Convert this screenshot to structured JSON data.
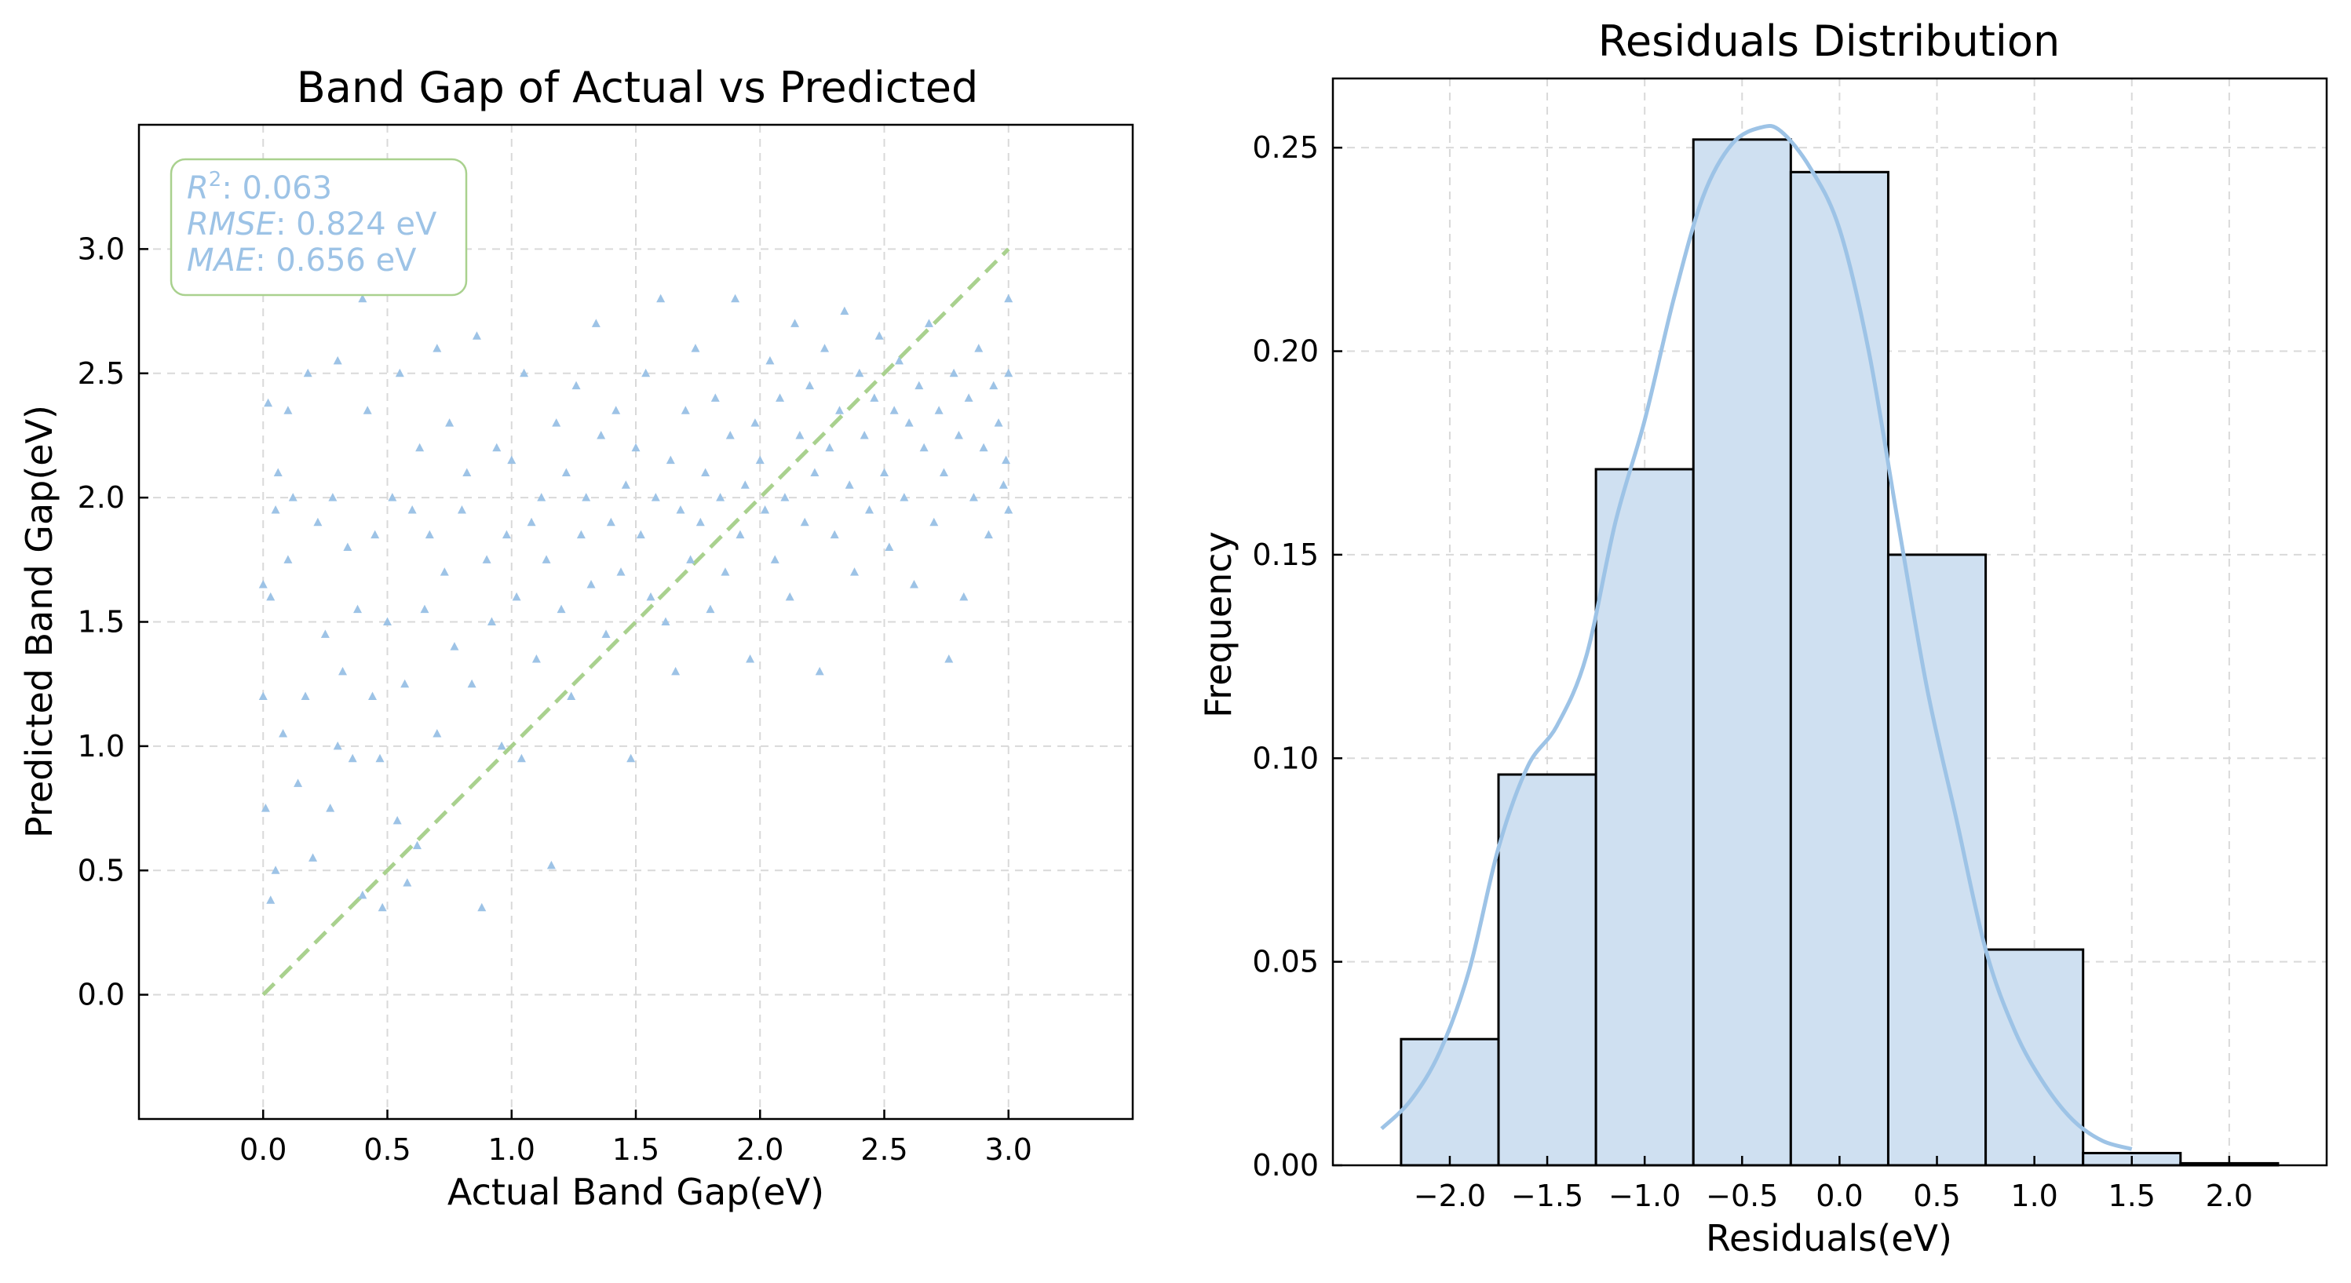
{
  "colors": {
    "scatter": "#9dc3e6",
    "ideal_line": "#a9d18e",
    "bar_fill": "#cfe0f1",
    "bar_edge": "#000000",
    "kde": "#9dc3e6",
    "grid": "#d9d9d9",
    "annotation_text": "#9dc3e6",
    "annotation_border": "#a9d18e"
  },
  "chart_data": [
    {
      "type": "scatter",
      "title": "Band Gap of Actual vs Predicted",
      "xlabel": "Actual Band Gap(eV)",
      "ylabel": "Predicted Band Gap(eV)",
      "xlim": [
        -0.5,
        3.5
      ],
      "ylim": [
        -0.5,
        3.5
      ],
      "xticks": [
        0.0,
        0.5,
        1.0,
        1.5,
        2.0,
        2.5,
        3.0
      ],
      "yticks": [
        0.0,
        0.5,
        1.0,
        1.5,
        2.0,
        2.5,
        3.0
      ],
      "xtick_labels": [
        "0.0",
        "0.5",
        "1.0",
        "1.5",
        "2.0",
        "2.5",
        "3.0"
      ],
      "ytick_labels": [
        "0.0",
        "0.5",
        "1.0",
        "1.5",
        "2.0",
        "2.5",
        "3.0"
      ],
      "grid": true,
      "marker": "triangle",
      "ideal_line": {
        "x": [
          0,
          3
        ],
        "y": [
          0,
          3
        ],
        "style": "dashed"
      },
      "metrics": [
        {
          "symbol": "R",
          "superscript": "2",
          "value": ": 0.063"
        },
        {
          "symbol": "RMSE",
          "superscript": "",
          "value": ": 0.824 eV"
        },
        {
          "symbol": "MAE",
          "superscript": "",
          "value": ": 0.656 eV"
        }
      ],
      "metrics_placement": "top-left",
      "points": [
        [
          0.0,
          1.65
        ],
        [
          0.0,
          1.2
        ],
        [
          0.01,
          0.75
        ],
        [
          0.02,
          2.38
        ],
        [
          0.03,
          0.38
        ],
        [
          0.03,
          1.6
        ],
        [
          0.05,
          0.5
        ],
        [
          0.05,
          1.95
        ],
        [
          0.06,
          2.1
        ],
        [
          0.08,
          1.05
        ],
        [
          0.1,
          1.75
        ],
        [
          0.1,
          2.35
        ],
        [
          0.12,
          2.0
        ],
        [
          0.14,
          0.85
        ],
        [
          0.17,
          1.2
        ],
        [
          0.18,
          2.5
        ],
        [
          0.2,
          0.55
        ],
        [
          0.22,
          1.9
        ],
        [
          0.25,
          1.45
        ],
        [
          0.27,
          0.75
        ],
        [
          0.28,
          2.0
        ],
        [
          0.3,
          1.0
        ],
        [
          0.3,
          2.55
        ],
        [
          0.32,
          1.3
        ],
        [
          0.34,
          1.8
        ],
        [
          0.36,
          0.95
        ],
        [
          0.38,
          1.55
        ],
        [
          0.4,
          2.8
        ],
        [
          0.4,
          0.4
        ],
        [
          0.42,
          2.35
        ],
        [
          0.44,
          1.2
        ],
        [
          0.45,
          1.85
        ],
        [
          0.47,
          0.95
        ],
        [
          0.48,
          0.35
        ],
        [
          0.5,
          1.5
        ],
        [
          0.52,
          2.0
        ],
        [
          0.54,
          0.7
        ],
        [
          0.55,
          2.5
        ],
        [
          0.57,
          1.25
        ],
        [
          0.58,
          0.45
        ],
        [
          0.6,
          1.95
        ],
        [
          0.62,
          0.6
        ],
        [
          0.63,
          2.2
        ],
        [
          0.65,
          1.55
        ],
        [
          0.67,
          1.85
        ],
        [
          0.7,
          2.6
        ],
        [
          0.7,
          1.05
        ],
        [
          0.73,
          1.7
        ],
        [
          0.75,
          2.3
        ],
        [
          0.77,
          1.4
        ],
        [
          0.8,
          1.95
        ],
        [
          0.82,
          2.1
        ],
        [
          0.84,
          1.25
        ],
        [
          0.86,
          2.65
        ],
        [
          0.88,
          0.35
        ],
        [
          0.9,
          1.75
        ],
        [
          0.92,
          1.5
        ],
        [
          0.94,
          2.2
        ],
        [
          0.96,
          1.0
        ],
        [
          0.98,
          1.85
        ],
        [
          1.0,
          2.15
        ],
        [
          1.02,
          1.6
        ],
        [
          1.04,
          0.95
        ],
        [
          1.05,
          2.5
        ],
        [
          1.08,
          1.9
        ],
        [
          1.1,
          1.35
        ],
        [
          1.12,
          2.0
        ],
        [
          1.14,
          1.75
        ],
        [
          1.16,
          0.52
        ],
        [
          1.18,
          2.3
        ],
        [
          1.2,
          1.55
        ],
        [
          1.22,
          2.1
        ],
        [
          1.24,
          1.2
        ],
        [
          1.26,
          2.45
        ],
        [
          1.28,
          1.85
        ],
        [
          1.3,
          2.0
        ],
        [
          1.32,
          1.65
        ],
        [
          1.34,
          2.7
        ],
        [
          1.36,
          2.25
        ],
        [
          1.38,
          1.45
        ],
        [
          1.4,
          1.9
        ],
        [
          1.42,
          2.35
        ],
        [
          1.44,
          1.7
        ],
        [
          1.46,
          2.05
        ],
        [
          1.48,
          0.95
        ],
        [
          1.5,
          2.2
        ],
        [
          1.52,
          1.85
        ],
        [
          1.54,
          2.5
        ],
        [
          1.56,
          1.6
        ],
        [
          1.58,
          2.0
        ],
        [
          1.6,
          2.8
        ],
        [
          1.62,
          1.5
        ],
        [
          1.64,
          2.15
        ],
        [
          1.66,
          1.3
        ],
        [
          1.68,
          1.95
        ],
        [
          1.7,
          2.35
        ],
        [
          1.72,
          1.75
        ],
        [
          1.74,
          2.6
        ],
        [
          1.76,
          1.9
        ],
        [
          1.78,
          2.1
        ],
        [
          1.8,
          1.55
        ],
        [
          1.82,
          2.4
        ],
        [
          1.84,
          2.0
        ],
        [
          1.86,
          1.7
        ],
        [
          1.88,
          2.25
        ],
        [
          1.9,
          2.8
        ],
        [
          1.92,
          1.85
        ],
        [
          1.94,
          2.05
        ],
        [
          1.96,
          1.35
        ],
        [
          1.98,
          2.3
        ],
        [
          2.0,
          2.15
        ],
        [
          2.02,
          1.95
        ],
        [
          2.04,
          2.55
        ],
        [
          2.06,
          1.75
        ],
        [
          2.08,
          2.4
        ],
        [
          2.1,
          2.0
        ],
        [
          2.12,
          1.6
        ],
        [
          2.14,
          2.7
        ],
        [
          2.16,
          2.25
        ],
        [
          2.18,
          1.9
        ],
        [
          2.2,
          2.45
        ],
        [
          2.22,
          2.1
        ],
        [
          2.24,
          1.3
        ],
        [
          2.26,
          2.6
        ],
        [
          2.28,
          2.2
        ],
        [
          2.3,
          1.85
        ],
        [
          2.32,
          2.35
        ],
        [
          2.34,
          2.75
        ],
        [
          2.36,
          2.05
        ],
        [
          2.38,
          1.7
        ],
        [
          2.4,
          2.5
        ],
        [
          2.42,
          2.25
        ],
        [
          2.44,
          1.95
        ],
        [
          2.46,
          2.4
        ],
        [
          2.48,
          2.65
        ],
        [
          2.5,
          2.1
        ],
        [
          2.52,
          1.8
        ],
        [
          2.54,
          2.35
        ],
        [
          2.56,
          2.55
        ],
        [
          2.58,
          2.0
        ],
        [
          2.6,
          2.3
        ],
        [
          2.62,
          1.65
        ],
        [
          2.64,
          2.45
        ],
        [
          2.66,
          2.2
        ],
        [
          2.68,
          2.7
        ],
        [
          2.7,
          1.9
        ],
        [
          2.72,
          2.35
        ],
        [
          2.74,
          2.1
        ],
        [
          2.76,
          1.35
        ],
        [
          2.78,
          2.5
        ],
        [
          2.8,
          2.25
        ],
        [
          2.82,
          1.6
        ],
        [
          2.84,
          2.4
        ],
        [
          2.86,
          2.0
        ],
        [
          2.88,
          2.6
        ],
        [
          2.9,
          2.2
        ],
        [
          2.92,
          1.85
        ],
        [
          2.94,
          2.45
        ],
        [
          2.96,
          2.3
        ],
        [
          2.98,
          2.05
        ],
        [
          3.0,
          2.8
        ],
        [
          3.0,
          1.95
        ],
        [
          3.0,
          2.5
        ],
        [
          2.99,
          2.15
        ]
      ]
    },
    {
      "type": "bar",
      "title": "Residuals Distribution",
      "xlabel": "Residuals(eV)",
      "ylabel": "Frequency",
      "xlim": [
        -2.6,
        2.5
      ],
      "ylim": [
        0.0,
        0.267
      ],
      "xticks": [
        -2.0,
        -1.5,
        -1.0,
        -0.5,
        0.0,
        0.5,
        1.0,
        1.5,
        2.0
      ],
      "yticks": [
        0.0,
        0.05,
        0.1,
        0.15,
        0.2,
        0.25
      ],
      "xtick_labels": [
        "−2.0",
        "−1.5",
        "−1.0",
        "−0.5",
        "0.0",
        "0.5",
        "1.0",
        "1.5",
        "2.0"
      ],
      "ytick_labels": [
        "0.00",
        "0.05",
        "0.10",
        "0.15",
        "0.20",
        "0.25"
      ],
      "grid": true,
      "bins": [
        {
          "x0": -2.25,
          "x1": -1.75,
          "value": 0.031
        },
        {
          "x0": -1.75,
          "x1": -1.25,
          "value": 0.096
        },
        {
          "x0": -1.25,
          "x1": -0.75,
          "value": 0.171
        },
        {
          "x0": -0.75,
          "x1": -0.25,
          "value": 0.252
        },
        {
          "x0": -0.25,
          "x1": 0.25,
          "value": 0.244
        },
        {
          "x0": 0.25,
          "x1": 0.75,
          "value": 0.15
        },
        {
          "x0": 0.75,
          "x1": 1.25,
          "value": 0.053
        },
        {
          "x0": 1.25,
          "x1": 1.75,
          "value": 0.003
        },
        {
          "x0": 1.75,
          "x1": 2.25,
          "value": 0.0005
        }
      ],
      "kde": {
        "x": [
          -2.35,
          -2.2,
          -2.05,
          -1.9,
          -1.75,
          -1.6,
          -1.45,
          -1.3,
          -1.15,
          -1.0,
          -0.85,
          -0.7,
          -0.55,
          -0.4,
          -0.3,
          -0.15,
          0.0,
          0.15,
          0.3,
          0.45,
          0.6,
          0.75,
          0.9,
          1.05,
          1.2,
          1.35,
          1.5
        ],
        "y": [
          0.009,
          0.016,
          0.028,
          0.048,
          0.078,
          0.098,
          0.108,
          0.125,
          0.158,
          0.183,
          0.213,
          0.238,
          0.251,
          0.255,
          0.254,
          0.245,
          0.23,
          0.2,
          0.158,
          0.117,
          0.085,
          0.053,
          0.033,
          0.02,
          0.011,
          0.006,
          0.004
        ]
      }
    }
  ]
}
